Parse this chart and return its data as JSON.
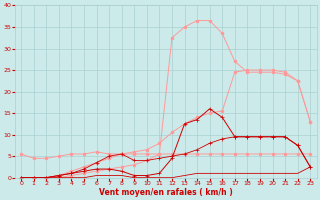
{
  "x": [
    0,
    1,
    2,
    3,
    4,
    5,
    6,
    7,
    8,
    9,
    10,
    11,
    12,
    13,
    14,
    15,
    16,
    17,
    18,
    19,
    20,
    21,
    22,
    23
  ],
  "line_pink_high_y": [
    0.0,
    0.0,
    0.0,
    0.0,
    0.5,
    1.0,
    1.5,
    2.0,
    2.5,
    3.0,
    4.0,
    5.5,
    32.5,
    35.0,
    36.5,
    36.5,
    33.5,
    27.0,
    24.5,
    24.5,
    24.5,
    24.0,
    22.5,
    13.0
  ],
  "line_pink_low_y": [
    0.0,
    0.0,
    0.0,
    0.5,
    1.5,
    2.5,
    3.5,
    4.5,
    5.5,
    6.0,
    6.5,
    8.0,
    10.5,
    12.5,
    14.0,
    15.0,
    15.5,
    24.5,
    25.0,
    25.0,
    25.0,
    24.5,
    22.5,
    13.0
  ],
  "line_pink_flat_y": [
    5.5,
    4.5,
    4.5,
    5.0,
    5.5,
    5.5,
    6.0,
    5.5,
    5.5,
    5.5,
    5.5,
    5.5,
    5.5,
    5.5,
    5.5,
    5.5,
    5.5,
    5.5,
    5.5,
    5.5,
    5.5,
    5.5,
    5.5,
    5.5
  ],
  "line_red_high_y": [
    0.0,
    0.0,
    0.0,
    0.5,
    1.0,
    1.5,
    2.0,
    2.0,
    1.5,
    0.5,
    0.5,
    1.0,
    4.5,
    12.5,
    13.5,
    16.0,
    14.0,
    9.5,
    9.5,
    9.5,
    9.5,
    9.5,
    7.5,
    2.5
  ],
  "line_red_low_y": [
    0.0,
    0.0,
    0.0,
    0.0,
    0.0,
    0.0,
    0.5,
    0.5,
    0.5,
    0.0,
    0.0,
    0.0,
    0.0,
    0.5,
    1.0,
    1.0,
    1.0,
    1.0,
    1.0,
    1.0,
    1.0,
    1.0,
    1.0,
    2.5
  ],
  "line_red_mid_y": [
    0.0,
    0.0,
    0.0,
    0.5,
    1.0,
    2.0,
    3.5,
    5.0,
    5.5,
    4.0,
    4.0,
    4.5,
    5.0,
    5.5,
    6.5,
    8.0,
    9.0,
    9.5,
    9.5,
    9.5,
    9.5,
    9.5,
    7.5,
    2.5
  ],
  "bg_color": "#cceaea",
  "grid_color": "#aacfcf",
  "pink_color": "#ff9999",
  "red_color": "#cc0000",
  "xlabel": "Vent moyen/en rafales ( km/h )",
  "ylim": [
    0,
    40
  ],
  "xlim": [
    0,
    23
  ],
  "yticks": [
    0,
    5,
    10,
    15,
    20,
    25,
    30,
    35,
    40
  ],
  "xticks": [
    0,
    1,
    2,
    3,
    4,
    5,
    6,
    7,
    8,
    9,
    10,
    11,
    12,
    13,
    14,
    15,
    16,
    17,
    18,
    19,
    20,
    21,
    22,
    23
  ]
}
